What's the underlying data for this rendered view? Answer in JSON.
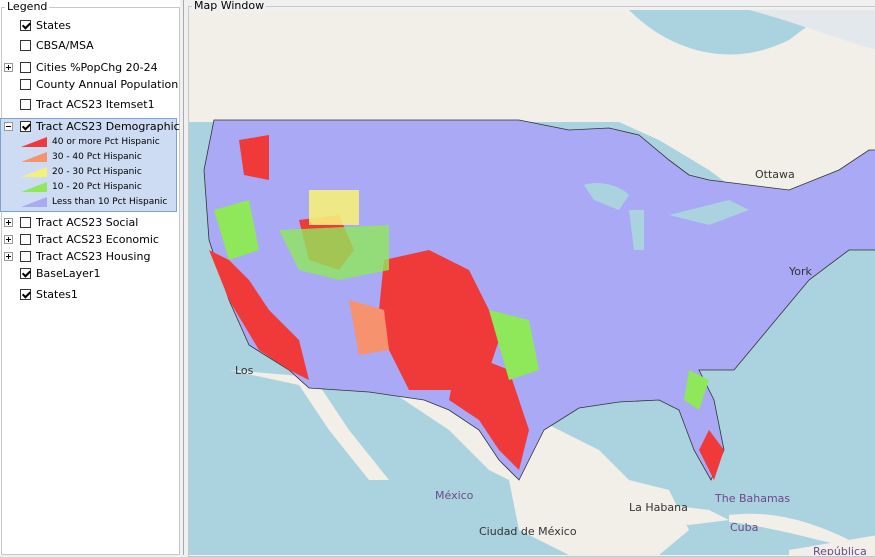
{
  "legend": {
    "title": "Legend",
    "layers": [
      {
        "name": "States",
        "checked": true,
        "expander": null
      },
      {
        "name": "CBSA/MSA",
        "checked": false,
        "expander": null
      },
      {
        "name": "Cities %PopChg 20-24",
        "checked": false,
        "expander": "plus"
      },
      {
        "name": "County Annual Population",
        "checked": false,
        "expander": null
      },
      {
        "name": "Tract ACS23 Itemset1",
        "checked": false,
        "expander": null
      },
      {
        "name": "Tract ACS23 Demographic",
        "checked": true,
        "expander": "minus",
        "selected": true,
        "classes": [
          {
            "label": "40 or more Pct Hispanic",
            "color": "#f03a3a"
          },
          {
            "label": "30 - 40 Pct Hispanic",
            "color": "#f7926e"
          },
          {
            "label": "20 - 30 Pct Hispanic",
            "color": "#f5f07a"
          },
          {
            "label": "10 - 20 Pct Hispanic",
            "color": "#8ee85a"
          },
          {
            "label": "Less than 10 Pct Hispanic",
            "color": "#a9a9f5"
          }
        ]
      },
      {
        "name": "Tract ACS23 Social",
        "checked": false,
        "expander": "plus"
      },
      {
        "name": "Tract ACS23 Economic",
        "checked": false,
        "expander": "plus"
      },
      {
        "name": "Tract ACS23 Housing",
        "checked": false,
        "expander": "plus"
      },
      {
        "name": "BaseLayer1",
        "checked": true,
        "expander": null
      },
      {
        "name": "States1",
        "checked": true,
        "expander": null
      }
    ]
  },
  "map": {
    "title": "Map Window",
    "labels": [
      "Ottawa",
      "York",
      "Los",
      "México",
      "La Habana",
      "The Bahamas",
      "Cuba",
      "Ciudad de México",
      "República"
    ]
  }
}
